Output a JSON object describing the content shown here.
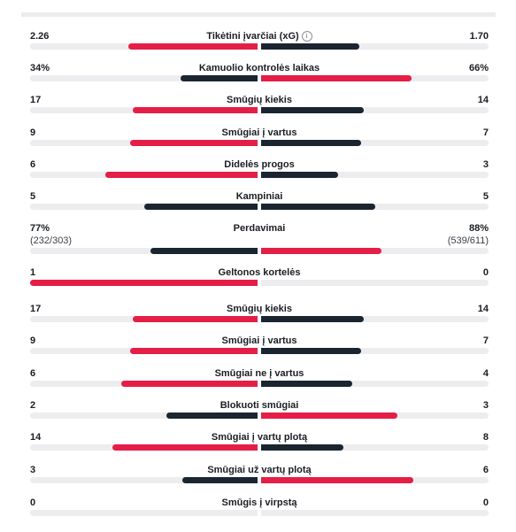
{
  "colors": {
    "winner": "#e41e47",
    "loser": "#1a2530",
    "track": "#ededf0"
  },
  "stats": [
    {
      "name": "Tikėtini įvarčiai (xG)",
      "home": "2.26",
      "away": "1.70",
      "home_fill": 0.57,
      "away_fill": 0.43,
      "home_color": "winner",
      "away_color": "loser",
      "info_icon": "info-icon"
    },
    {
      "name": "Kamuolio kontrolės laikas",
      "home": "34%",
      "away": "66%",
      "home_fill": 0.34,
      "away_fill": 0.66,
      "home_color": "loser",
      "away_color": "winner"
    },
    {
      "name": "Smūgių kiekis",
      "home": "17",
      "away": "14",
      "home_fill": 0.55,
      "away_fill": 0.45,
      "home_color": "winner",
      "away_color": "loser"
    },
    {
      "name": "Smūgiai į vartus",
      "home": "9",
      "away": "7",
      "home_fill": 0.56,
      "away_fill": 0.44,
      "home_color": "winner",
      "away_color": "loser"
    },
    {
      "name": "Didelės progos",
      "home": "6",
      "away": "3",
      "home_fill": 0.67,
      "away_fill": 0.34,
      "home_color": "winner",
      "away_color": "loser"
    },
    {
      "name": "Kampiniai",
      "home": "5",
      "away": "5",
      "home_fill": 0.5,
      "away_fill": 0.5,
      "home_color": "loser",
      "away_color": "loser"
    },
    {
      "name": "Perdavimai",
      "home": "77%",
      "home_sub": "(232/303)",
      "away": "88%",
      "away_sub": "(539/611)",
      "home_fill": 0.47,
      "away_fill": 0.53,
      "home_color": "loser",
      "away_color": "winner"
    },
    {
      "name": "Geltonos kortelės",
      "home": "1",
      "away": "0",
      "home_fill": 1.0,
      "away_fill": 0.0,
      "home_color": "winner",
      "away_color": "loser"
    },
    {
      "name": "Smūgių kiekis",
      "home": "17",
      "away": "14",
      "home_fill": 0.55,
      "away_fill": 0.45,
      "home_color": "winner",
      "away_color": "loser"
    },
    {
      "name": "Smūgiai į vartus",
      "home": "9",
      "away": "7",
      "home_fill": 0.56,
      "away_fill": 0.44,
      "home_color": "winner",
      "away_color": "loser"
    },
    {
      "name": "Smūgiai ne į vartus",
      "home": "6",
      "away": "4",
      "home_fill": 0.6,
      "away_fill": 0.4,
      "home_color": "winner",
      "away_color": "loser"
    },
    {
      "name": "Blokuoti smūgiai",
      "home": "2",
      "away": "3",
      "home_fill": 0.4,
      "away_fill": 0.6,
      "home_color": "loser",
      "away_color": "winner"
    },
    {
      "name": "Smūgiai į vartų plotą",
      "home": "14",
      "away": "8",
      "home_fill": 0.64,
      "away_fill": 0.36,
      "home_color": "winner",
      "away_color": "loser"
    },
    {
      "name": "Smūgiai už vartų plotą",
      "home": "3",
      "away": "6",
      "home_fill": 0.33,
      "away_fill": 0.67,
      "home_color": "loser",
      "away_color": "winner"
    },
    {
      "name": "Smūgis į virpstą",
      "home": "0",
      "away": "0",
      "home_fill": 0.0,
      "away_fill": 0.0,
      "home_color": "loser",
      "away_color": "loser"
    }
  ]
}
